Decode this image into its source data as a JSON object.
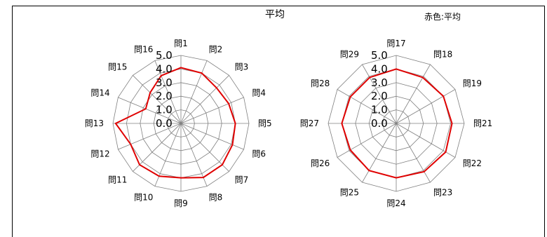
{
  "title": "平均",
  "legend_note": "赤色:平均",
  "colors": {
    "series": "#e00000",
    "grid": "#808080",
    "text": "#000000"
  },
  "chart_data": [
    {
      "type": "radar",
      "title": "",
      "categories": [
        "問1",
        "問2",
        "問3",
        "問4",
        "問5",
        "問6",
        "問7",
        "問8",
        "問9",
        "問10",
        "問11",
        "問12",
        "問13",
        "問14",
        "問15",
        "問16"
      ],
      "tick_labels": [
        "0.0",
        "1.0",
        "2.0",
        "3.0",
        "4.0",
        "5.0"
      ],
      "range": [
        0,
        5
      ],
      "grid": true,
      "series": [
        {
          "values": [
            4.1,
            4.0,
            3.7,
            3.8,
            4.0,
            4.1,
            4.3,
            4.3,
            4.0,
            4.2,
            4.3,
            4.0,
            4.8,
            2.8,
            3.2,
            3.8
          ]
        }
      ]
    },
    {
      "type": "radar",
      "title": "",
      "categories": [
        "問17",
        "問18",
        "問19",
        "問21",
        "問22",
        "問23",
        "問24",
        "問25",
        "問26",
        "問27",
        "問28",
        "問29"
      ],
      "tick_labels": [
        "0.0",
        "1.0",
        "2.0",
        "3.0",
        "4.0",
        "5.0"
      ],
      "range": [
        0,
        5
      ],
      "grid": true,
      "series": [
        {
          "values": [
            4.0,
            3.9,
            4.0,
            4.1,
            4.2,
            4.1,
            4.0,
            4.0,
            3.9,
            4.0,
            3.9,
            3.9
          ]
        }
      ]
    }
  ]
}
